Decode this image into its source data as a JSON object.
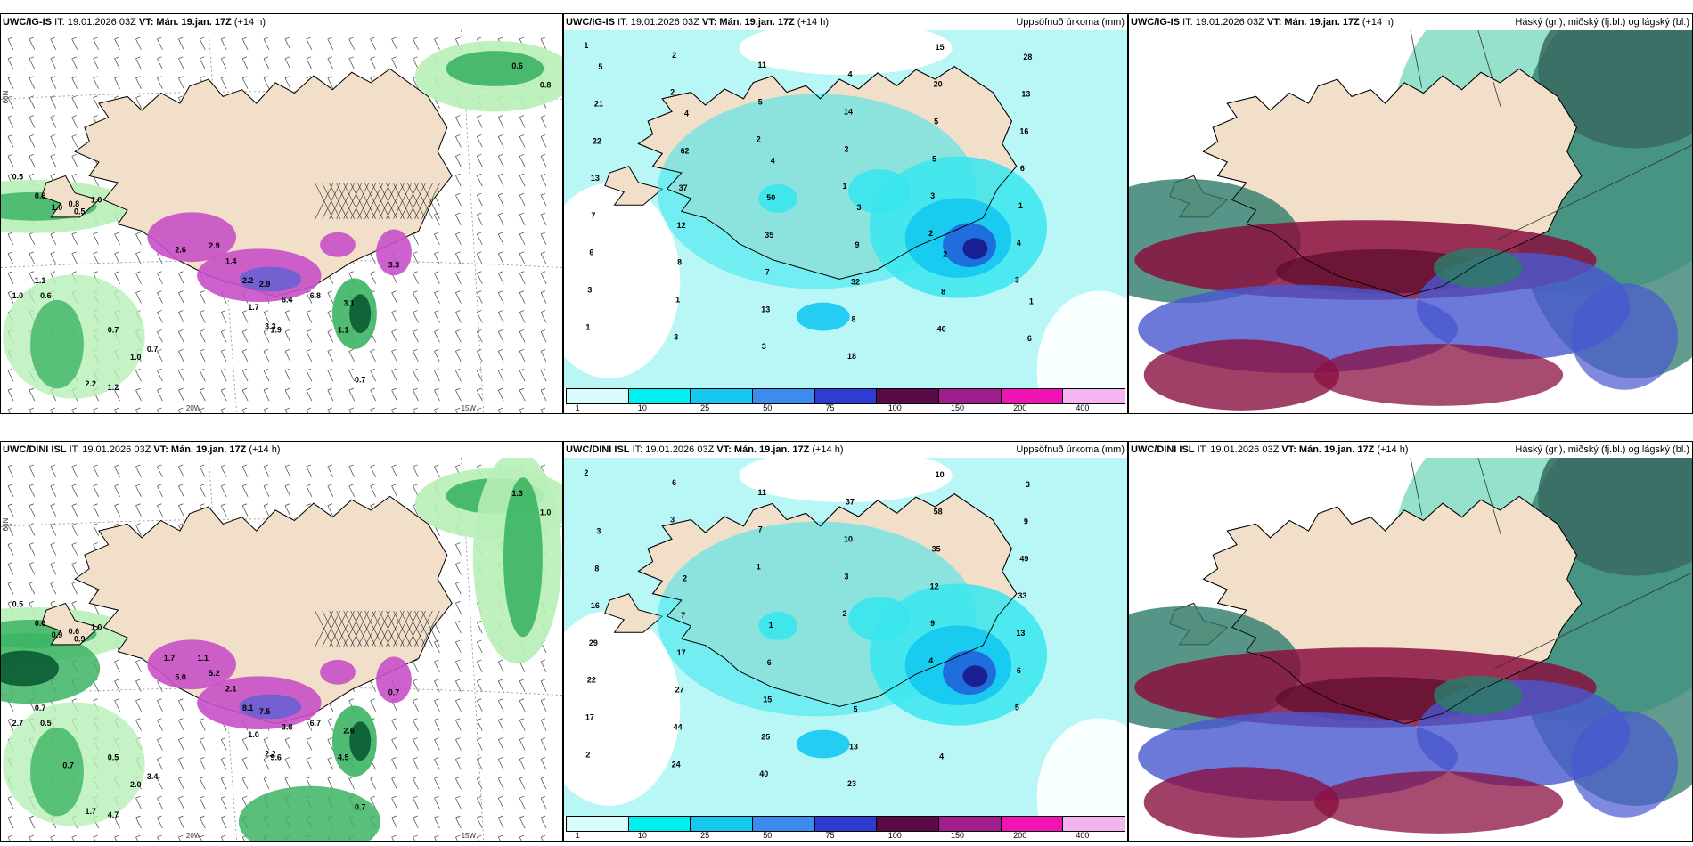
{
  "rows": [
    {
      "model": "UWC/IG-IS",
      "panels": [
        {
          "type": "wind",
          "model": "UWC/IG-IS",
          "it": "IT: 19.01.2026 03Z",
          "vt": "VT: Mán. 19.jan. 17Z",
          "lead": "(+14 h)",
          "field": "",
          "values": [
            "0.6",
            "0.8",
            "0.5",
            "0.8",
            "1.0",
            "0.8",
            "1.0",
            "0.5",
            "1.1",
            "1.0",
            "0.6",
            "0.7",
            "1.0",
            "2.2",
            "1.2",
            "0.7",
            "2.6",
            "2.9",
            "1.4",
            "2.2",
            "2.9",
            "6.8",
            "6.4",
            "1.7",
            "3.3",
            "1.9",
            "1.1",
            "3.1",
            "3.3",
            "0.7"
          ]
        },
        {
          "type": "precip",
          "model": "UWC/IG-IS",
          "it": "IT: 19.01.2026 03Z",
          "vt": "VT: Mán. 19.jan. 17Z",
          "lead": "(+14 h)",
          "field": "Uppsöfnuð úrkoma (mm)",
          "values": [
            "1",
            "2",
            "2",
            "1",
            "2",
            "3",
            "1",
            "2",
            "5",
            "2",
            "3",
            "4",
            "3",
            "3",
            "11",
            "14",
            "5",
            "1",
            "6",
            "1",
            "3",
            "4",
            "5",
            "6",
            "7",
            "8",
            "13",
            "18",
            "20",
            "16",
            "13",
            "12",
            "7",
            "8",
            "15",
            "13",
            "22",
            "37",
            "35",
            "32",
            "40",
            "28",
            "21",
            "62",
            "50",
            "9",
            "8",
            "6",
            "5",
            "4",
            "4",
            "3",
            "2",
            "1"
          ]
        },
        {
          "type": "cloud",
          "model": "UWC/IG-IS",
          "it": "IT: 19.01.2026 03Z",
          "vt": "VT: Mán. 19.jan. 17Z",
          "lead": "(+14 h)",
          "field": "Háský (gr.), miðský (fj.bl.) og lágský (bl.)",
          "values": []
        }
      ]
    },
    {
      "model": "UWC/DINI ISL",
      "panels": [
        {
          "type": "wind",
          "model": "UWC/DINI ISL",
          "it": "IT: 19.01.2026 03Z",
          "vt": "VT: Mán. 19.jan. 17Z",
          "lead": "(+14 h)",
          "field": "",
          "values": [
            "1.3",
            "1.0",
            "0.5",
            "0.6",
            "0.9",
            "0.6",
            "1.0",
            "0.9",
            "0.7",
            "2.7",
            "0.5",
            "0.5",
            "2.0",
            "1.7",
            "4.7",
            "3.4",
            "5.0",
            "5.2",
            "2.1",
            "8.1",
            "7.5",
            "6.7",
            "3.8",
            "1.0",
            "2.2",
            "9.6",
            "4.5",
            "2.6",
            "0.7",
            "0.7",
            "1.1",
            "1.7",
            "0.7"
          ]
        },
        {
          "type": "precip",
          "model": "UWC/DINI ISL",
          "it": "IT: 19.01.2026 03Z",
          "vt": "VT: Mán. 19.jan. 17Z",
          "lead": "(+14 h)",
          "field": "Uppsöfnuð úrkoma (mm)",
          "values": [
            "2",
            "3",
            "1",
            "2",
            "4",
            "5",
            "2",
            "6",
            "7",
            "3",
            "9",
            "6",
            "17",
            "24",
            "11",
            "10",
            "12",
            "13",
            "22",
            "44",
            "40",
            "37",
            "35",
            "33",
            "29",
            "27",
            "25",
            "23",
            "58",
            "49",
            "16",
            "17",
            "15",
            "13",
            "10",
            "9",
            "8",
            "7",
            "6",
            "5",
            "4",
            "3",
            "3",
            "2",
            "1"
          ]
        },
        {
          "type": "cloud",
          "model": "UWC/DINI ISL",
          "it": "IT: 19.01.2026 03Z",
          "vt": "VT: Mán. 19.jan. 17Z",
          "lead": "(+14 h)",
          "field": "Háský (gr.), miðský (fj.bl.) og lágský (bl.)",
          "values": []
        }
      ]
    }
  ],
  "grid_labels": {
    "lat": "66N",
    "lon1": "20W",
    "lon2": "15W"
  },
  "colorbar": {
    "ticks": [
      "1",
      "10",
      "25",
      "50",
      "75",
      "100",
      "150",
      "200",
      "400"
    ],
    "colors": [
      "#d8fbfb",
      "#00f0f0",
      "#14c8f0",
      "#3c8cf0",
      "#2e3cd2",
      "#5a0a46",
      "#a01e8c",
      "#f014b4",
      "#f4b4f0"
    ]
  },
  "colors": {
    "land": "#f2dfc9",
    "sea_light": "#b9f7f7",
    "precip_cyan": "#38e6ee",
    "precip_blue": "#1f64dc",
    "precip_dark": "#1a1a8c",
    "wind_green_light": "#b8f0b8",
    "wind_green": "#3cb464",
    "wind_green_dark": "#0a5a32",
    "snow_purple": "#c850c8",
    "cloud_high": "#7a8a86",
    "cloud_mid": "#2d7a6a",
    "cloud_mid_light": "#3ec8a0",
    "cloud_low_blue": "#4858d0",
    "cloud_low_red": "#8a1040"
  }
}
